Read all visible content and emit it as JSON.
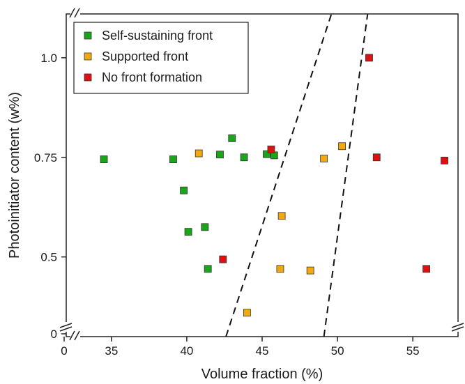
{
  "chart_data": {
    "type": "scatter",
    "xlabel": "Volume fraction (%)",
    "ylabel": "Photoinitiator content (w%)",
    "x_ticks": [
      {
        "value": 0,
        "label": "0"
      },
      {
        "value": 35,
        "label": "35"
      },
      {
        "value": 40,
        "label": "40"
      },
      {
        "value": 45,
        "label": "45"
      },
      {
        "value": 50,
        "label": "50"
      },
      {
        "value": 55,
        "label": "55"
      }
    ],
    "y_ticks": [
      {
        "value": 0,
        "label": "0"
      },
      {
        "value": 0.5,
        "label": "0.5"
      },
      {
        "value": 0.75,
        "label": "0.75"
      },
      {
        "value": 1.0,
        "label": "1.0"
      }
    ],
    "axis_breaks": {
      "x": true,
      "y": true
    },
    "xlim": [
      32.0,
      58.0
    ],
    "ylim": [
      0.3,
      1.11
    ],
    "legend": "top-left",
    "series": [
      {
        "name": "Self-sustaining front",
        "color": "#1aa51a",
        "points": [
          [
            34.5,
            0.745
          ],
          [
            39.1,
            0.745
          ],
          [
            39.8,
            0.667
          ],
          [
            40.1,
            0.563
          ],
          [
            41.2,
            0.575
          ],
          [
            41.4,
            0.47
          ],
          [
            42.2,
            0.757
          ],
          [
            43.0,
            0.798
          ],
          [
            43.8,
            0.75
          ],
          [
            45.3,
            0.758
          ],
          [
            45.8,
            0.755
          ]
        ]
      },
      {
        "name": "Supported front",
        "color": "#f2a90f",
        "points": [
          [
            40.8,
            0.76
          ],
          [
            44.0,
            0.36
          ],
          [
            46.2,
            0.47
          ],
          [
            46.3,
            0.603
          ],
          [
            48.2,
            0.466
          ],
          [
            49.1,
            0.747
          ],
          [
            50.3,
            0.778
          ]
        ]
      },
      {
        "name": "No front formation",
        "color": "#dd1111",
        "points": [
          [
            42.4,
            0.494
          ],
          [
            45.6,
            0.77
          ],
          [
            52.1,
            1.0
          ],
          [
            52.6,
            0.75
          ],
          [
            55.9,
            0.47
          ],
          [
            57.1,
            0.742
          ]
        ]
      }
    ],
    "boundary_lines": [
      {
        "style": "dashed",
        "from": [
          42.6,
          0.3
        ],
        "to": [
          49.6,
          1.11
        ]
      },
      {
        "style": "dashed",
        "from": [
          49.1,
          0.3
        ],
        "to": [
          52.0,
          1.11
        ]
      }
    ]
  }
}
